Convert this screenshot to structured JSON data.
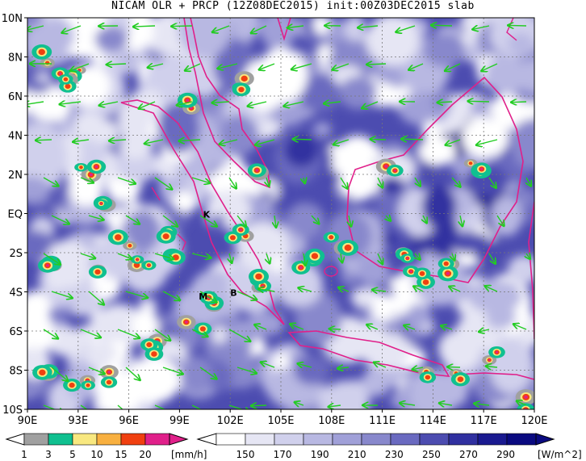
{
  "title": "NICAM OLR + PRCP (12Z08DEC2015) init:00Z03DEC2015 slab",
  "map": {
    "lon_range": [
      90,
      120
    ],
    "lat_range": [
      -10,
      10
    ],
    "lon_ticks": [
      "90E",
      "93E",
      "96E",
      "99E",
      "102E",
      "105E",
      "108E",
      "111E",
      "114E",
      "117E",
      "120E"
    ],
    "lat_ticks": [
      "10N",
      "8N",
      "6N",
      "4N",
      "2N",
      "EQ",
      "2S",
      "4S",
      "6S",
      "8S",
      "10S"
    ],
    "place_labels": [
      {
        "text": "K",
        "lon": 100.6,
        "lat": -0.2
      },
      {
        "text": "M",
        "lon": 100.4,
        "lat": -4.4
      },
      {
        "text": "B",
        "lon": 102.2,
        "lat": -4.2
      }
    ],
    "colors": {
      "coast": "#e0208a",
      "wind": "#22cc22",
      "grid": "#777777"
    }
  },
  "precip_colorbar": {
    "labels": [
      "1",
      "3",
      "5",
      "10",
      "15",
      "20"
    ],
    "unit": "[mm/h]",
    "colors": [
      "#a0a0a0",
      "#10c090",
      "#f8e880",
      "#f8b040",
      "#f04010",
      "#e0208a"
    ]
  },
  "olr_colorbar": {
    "labels": [
      "150",
      "170",
      "190",
      "210",
      "230",
      "250",
      "270",
      "290"
    ],
    "unit": "[W/m^2]",
    "colors": [
      "#ffffff",
      "#e6e6f4",
      "#d0d0ec",
      "#b8b8e2",
      "#a0a0d8",
      "#8888cc",
      "#6a6ac0",
      "#4c4cb0",
      "#3030a0",
      "#1a1a90",
      "#0a0a80"
    ]
  }
}
